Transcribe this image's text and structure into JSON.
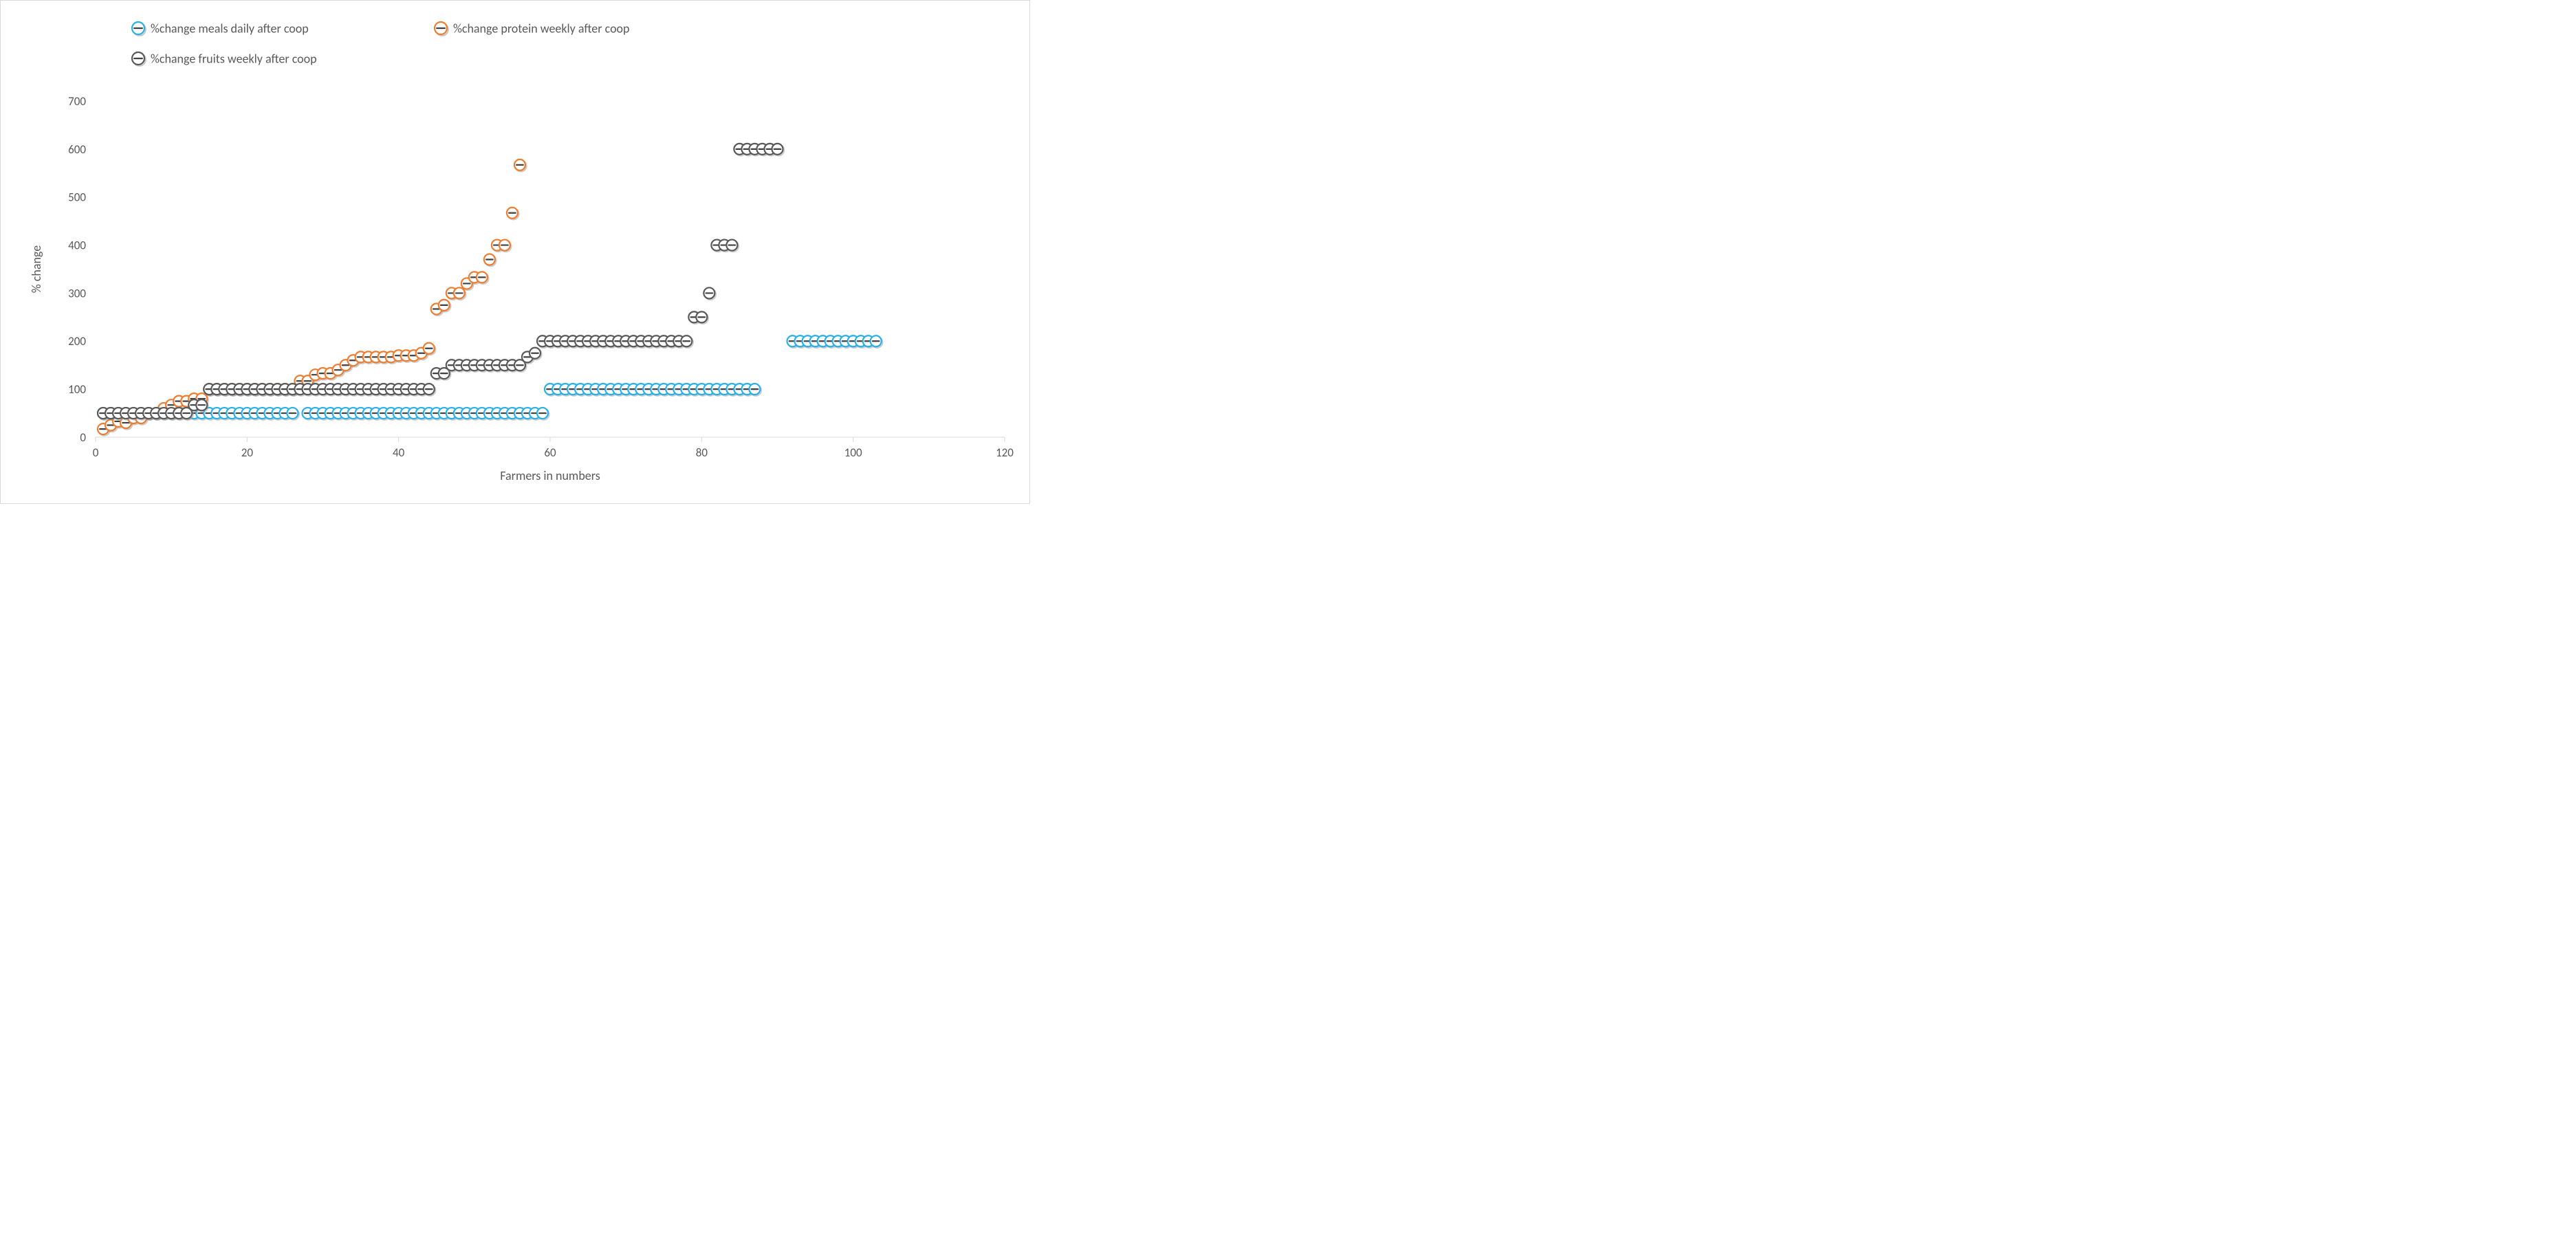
{
  "chart": {
    "type": "scatter",
    "background_color": "#ffffff",
    "border_color": "#d9d9d9",
    "plot_border_color": "#d9d9d9",
    "text_color": "#595959",
    "font_family": "Calibri, Segoe UI, Arial, sans-serif",
    "title_fontsize": 18,
    "axis_label_fontsize": 18,
    "tick_fontsize": 17,
    "legend_fontsize": 18,
    "xlabel": "Farmers in numbers",
    "ylabel": "% change",
    "xlim": [
      0,
      120
    ],
    "xtick_step": 20,
    "ylim": [
      0,
      700
    ],
    "ytick_step": 100,
    "grid": false,
    "marker_radius": 8,
    "marker_stroke_width": 2.2,
    "marker_dash_color": "#404040",
    "marker_dash_width": 2.2,
    "marker_shadow_color": "#9a9a9a",
    "marker_inner_fill": "#ffffff",
    "legend_items": [
      {
        "key": "meals",
        "label": "%change meals daily after coop"
      },
      {
        "key": "protein",
        "label": "%change protein weekly after coop"
      },
      {
        "key": "fruits",
        "label": "%change fruits weekly after coop"
      }
    ],
    "series": {
      "meals": {
        "ring_color": "#29b0e8",
        "x": [
          1,
          2,
          3,
          4,
          5,
          6,
          7,
          8,
          9,
          10,
          11,
          12,
          13,
          14,
          15,
          16,
          17,
          18,
          19,
          20,
          21,
          22,
          23,
          24,
          25,
          26,
          28,
          29,
          30,
          31,
          32,
          33,
          34,
          35,
          36,
          37,
          38,
          39,
          40,
          41,
          42,
          43,
          44,
          45,
          46,
          47,
          48,
          49,
          50,
          51,
          52,
          53,
          54,
          55,
          56,
          57,
          58,
          59,
          60,
          61,
          62,
          63,
          64,
          65,
          66,
          67,
          68,
          69,
          70,
          71,
          72,
          73,
          74,
          75,
          76,
          77,
          78,
          79,
          80,
          81,
          82,
          83,
          84,
          85,
          86,
          87,
          92,
          93,
          94,
          95,
          96,
          97,
          98,
          99,
          100,
          101,
          102,
          103
        ],
        "y": [
          50,
          50,
          50,
          50,
          50,
          50,
          50,
          50,
          50,
          50,
          50,
          50,
          50,
          50,
          50,
          50,
          50,
          50,
          50,
          50,
          50,
          50,
          50,
          50,
          50,
          50,
          50,
          50,
          50,
          50,
          50,
          50,
          50,
          50,
          50,
          50,
          50,
          50,
          50,
          50,
          50,
          50,
          50,
          50,
          50,
          50,
          50,
          50,
          50,
          50,
          50,
          50,
          50,
          50,
          50,
          50,
          50,
          50,
          100,
          100,
          100,
          100,
          100,
          100,
          100,
          100,
          100,
          100,
          100,
          100,
          100,
          100,
          100,
          100,
          100,
          100,
          100,
          100,
          100,
          100,
          100,
          100,
          100,
          100,
          100,
          100,
          200,
          200,
          200,
          200,
          200,
          200,
          200,
          200,
          200,
          200,
          200,
          200
        ]
      },
      "protein": {
        "ring_color": "#ed7d31",
        "x": [
          1,
          2,
          3,
          4,
          5,
          6,
          7,
          8,
          9,
          10,
          11,
          12,
          13,
          14,
          15,
          16,
          17,
          18,
          19,
          20,
          21,
          22,
          23,
          24,
          25,
          26,
          27,
          28,
          29,
          30,
          31,
          32,
          33,
          34,
          35,
          36,
          37,
          38,
          39,
          40,
          41,
          42,
          43,
          44,
          45,
          46,
          47,
          48,
          49,
          50,
          51,
          52,
          53,
          54,
          55,
          56
        ],
        "y": [
          17,
          25,
          33,
          30,
          40,
          40,
          50,
          50,
          60,
          67,
          75,
          75,
          80,
          80,
          100,
          100,
          100,
          100,
          100,
          100,
          100,
          100,
          100,
          100,
          100,
          100,
          117,
          117,
          130,
          133,
          133,
          140,
          150,
          160,
          167,
          167,
          167,
          167,
          167,
          170,
          170,
          170,
          175,
          185,
          267,
          275,
          300,
          300,
          320,
          333,
          333,
          370,
          400,
          400,
          467,
          567
        ]
      },
      "fruits": {
        "ring_color": "#595959",
        "x": [
          1,
          2,
          3,
          4,
          5,
          6,
          7,
          8,
          9,
          10,
          11,
          12,
          13,
          14,
          15,
          16,
          17,
          18,
          19,
          20,
          21,
          22,
          23,
          24,
          25,
          26,
          27,
          28,
          29,
          30,
          31,
          32,
          33,
          34,
          35,
          36,
          37,
          38,
          39,
          40,
          41,
          42,
          43,
          44,
          45,
          46,
          47,
          48,
          49,
          50,
          51,
          52,
          53,
          54,
          55,
          56,
          57,
          58,
          59,
          60,
          61,
          62,
          63,
          64,
          65,
          66,
          67,
          68,
          69,
          70,
          71,
          72,
          73,
          74,
          75,
          76,
          77,
          78,
          79,
          80,
          81,
          82,
          83,
          84,
          85,
          86,
          87,
          88,
          89,
          90
        ],
        "y": [
          50,
          50,
          50,
          50,
          50,
          50,
          50,
          50,
          50,
          50,
          50,
          50,
          67,
          67,
          100,
          100,
          100,
          100,
          100,
          100,
          100,
          100,
          100,
          100,
          100,
          100,
          100,
          100,
          100,
          100,
          100,
          100,
          100,
          100,
          100,
          100,
          100,
          100,
          100,
          100,
          100,
          100,
          100,
          100,
          133,
          133,
          150,
          150,
          150,
          150,
          150,
          150,
          150,
          150,
          150,
          150,
          167,
          175,
          200,
          200,
          200,
          200,
          200,
          200,
          200,
          200,
          200,
          200,
          200,
          200,
          200,
          200,
          200,
          200,
          200,
          200,
          200,
          200,
          250,
          250,
          300,
          400,
          400,
          400,
          600,
          600,
          600,
          600,
          600,
          600
        ]
      }
    }
  }
}
